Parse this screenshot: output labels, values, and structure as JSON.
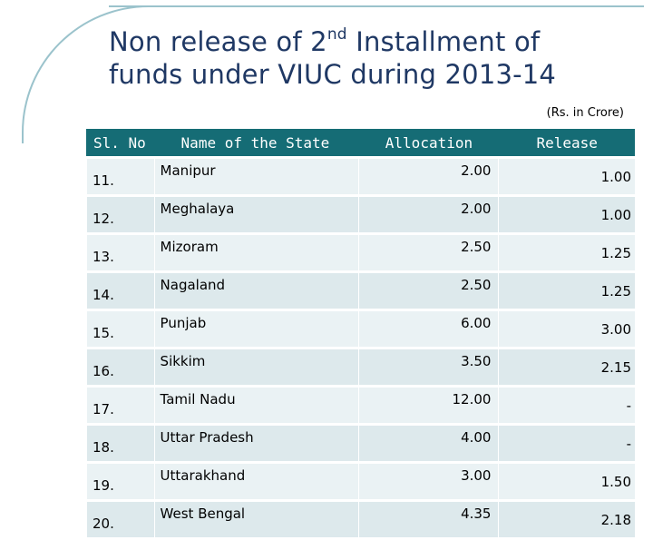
{
  "slide": {
    "title_part1": "Non release of 2",
    "title_sup": "nd",
    "title_part2": " Installment  of",
    "title_line2": "funds under VIUC during 2013-14",
    "unit_note": "(Rs. in Crore)"
  },
  "table": {
    "headers": {
      "sl": "Sl. No",
      "state": "Name of the State",
      "allocation": "Allocation",
      "release": "Release"
    },
    "rows": [
      {
        "sl": "11.",
        "state": "Manipur",
        "allocation": "2.00",
        "release": "1.00"
      },
      {
        "sl": "12.",
        "state": "Meghalaya",
        "allocation": "2.00",
        "release": "1.00"
      },
      {
        "sl": "13.",
        "state": "Mizoram",
        "allocation": "2.50",
        "release": "1.25"
      },
      {
        "sl": "14.",
        "state": "Nagaland",
        "allocation": "2.50",
        "release": "1.25"
      },
      {
        "sl": "15.",
        "state": "Punjab",
        "allocation": "6.00",
        "release": "3.00"
      },
      {
        "sl": "16.",
        "state": "Sikkim",
        "allocation": "3.50",
        "release": "2.15"
      },
      {
        "sl": "17.",
        "state": "Tamil Nadu",
        "allocation": "12.00",
        "release": "-"
      },
      {
        "sl": "18.",
        "state": "Uttar Pradesh",
        "allocation": "4.00",
        "release": "-"
      },
      {
        "sl": "19.",
        "state": "Uttarakhand",
        "allocation": "3.00",
        "release": "1.50"
      },
      {
        "sl": "20.",
        "state": "West Bengal",
        "allocation": "4.35",
        "release": "2.18"
      }
    ]
  }
}
